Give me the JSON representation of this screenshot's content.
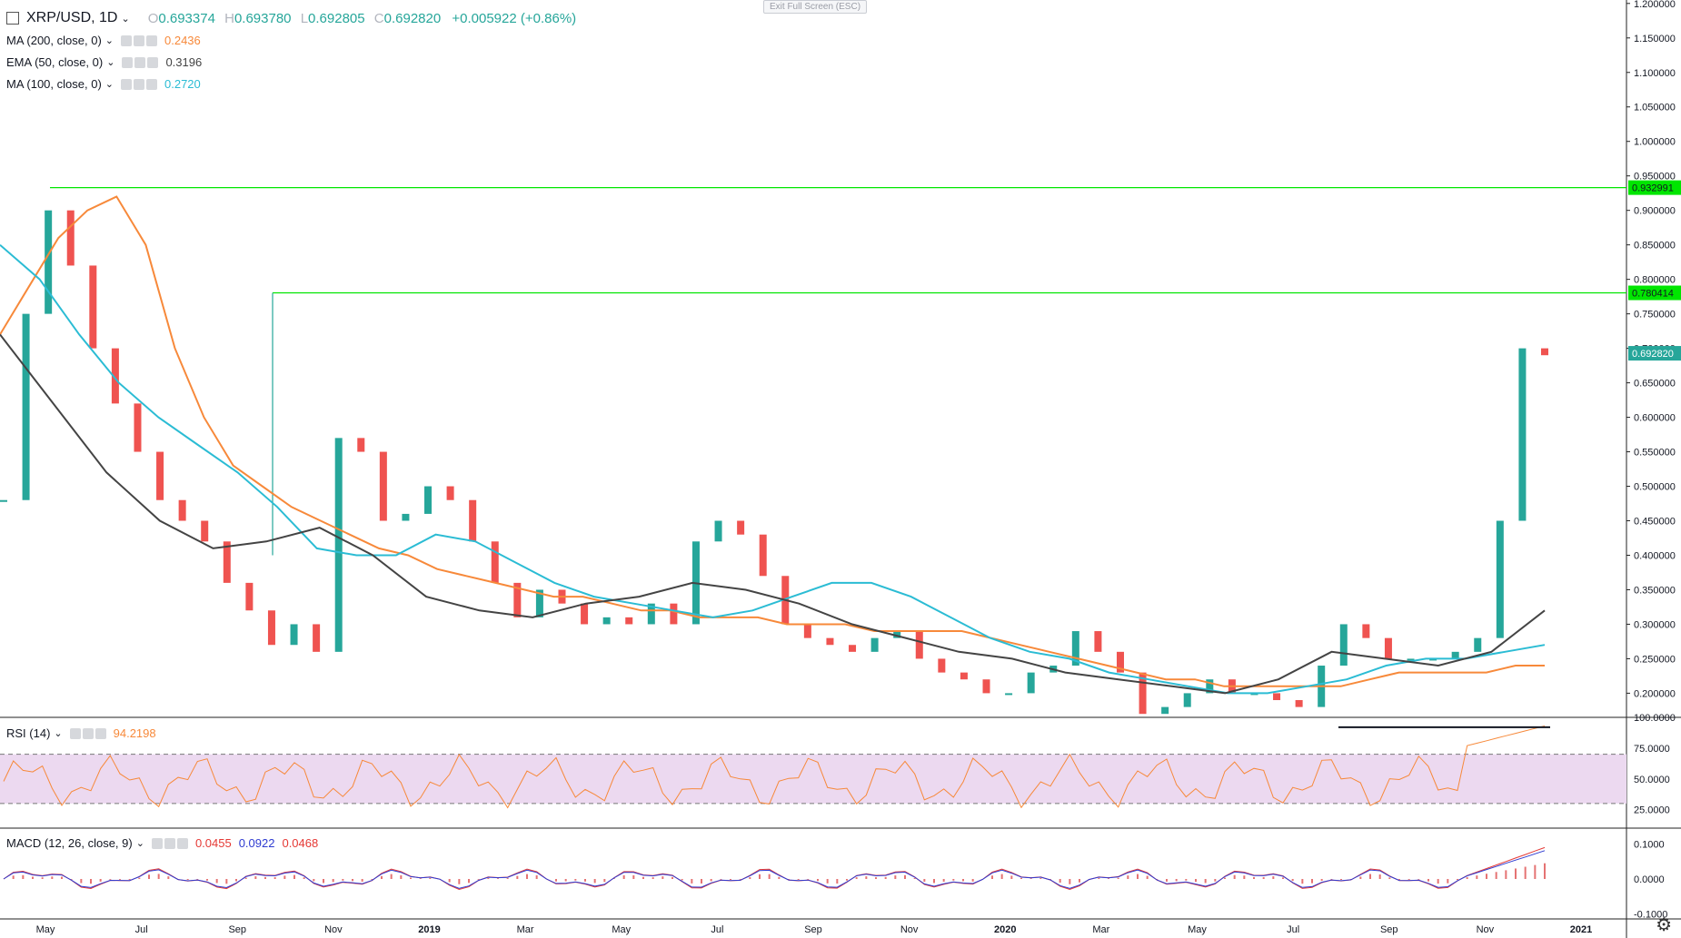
{
  "header": {
    "symbol": "XRP/USD",
    "interval": "1D",
    "open_label": "O",
    "open": "0.693374",
    "high_label": "H",
    "high": "0.693780",
    "low_label": "L",
    "low": "0.692805",
    "close_label": "C",
    "close": "0.692820",
    "change": "+0.005922 (+0.86%)",
    "exit_fullscreen": "Exit Full Screen (ESC)"
  },
  "indicators": {
    "ma200": {
      "label": "MA (200, close, 0)",
      "value": "0.2436",
      "color": "#f7893a"
    },
    "ema50": {
      "label": "EMA (50, close, 0)",
      "value": "0.3196",
      "color": "#444444"
    },
    "ma100": {
      "label": "MA (100, close, 0)",
      "value": "0.2720",
      "color": "#2bbcd4"
    },
    "rsi": {
      "label": "RSI (14)",
      "value": "94.2198",
      "color": "#f7893a"
    },
    "macd": {
      "label": "MACD (12, 26, close, 9)",
      "v1": "0.0455",
      "v2": "0.0922",
      "v3": "0.0468",
      "c1": "#e53935",
      "c2": "#2e3bd1"
    }
  },
  "chart_data": {
    "type": "line",
    "colors": {
      "up": "#26a69a",
      "down": "#ef5350",
      "hline": "#00e600",
      "rsi_band": "#ecd9f0"
    },
    "price_axis": [
      "1.200000",
      "1.150000",
      "1.100000",
      "1.050000",
      "1.000000",
      "0.950000",
      "0.900000",
      "0.850000",
      "0.800000",
      "0.750000",
      "0.700000",
      "0.650000",
      "0.600000",
      "0.550000",
      "0.500000",
      "0.450000",
      "0.400000",
      "0.350000",
      "0.300000",
      "0.250000",
      "0.200000"
    ],
    "price_range": [
      0.165,
      1.205
    ],
    "rsi_axis": [
      "100.0000",
      "75.0000",
      "50.0000",
      "25.0000"
    ],
    "rsi_range": [
      10,
      100
    ],
    "macd_axis": [
      "0.1000",
      "0.0000",
      "-0.1000"
    ],
    "time_labels": [
      "May",
      "Jul",
      "Sep",
      "Nov",
      "2019",
      "Mar",
      "May",
      "Jul",
      "Sep",
      "Nov",
      "2020",
      "Mar",
      "May",
      "Jul",
      "Sep",
      "Nov",
      "2021"
    ],
    "markers": [
      {
        "label": "0.932991",
        "value": 0.932991
      },
      {
        "label": "0.780414",
        "value": 0.780414
      },
      {
        "label": "0.692820",
        "value": 0.69282
      }
    ],
    "price": [
      0.48,
      0.75,
      0.9,
      0.82,
      0.7,
      0.62,
      0.55,
      0.48,
      0.45,
      0.42,
      0.36,
      0.32,
      0.27,
      0.3,
      0.26,
      0.57,
      0.55,
      0.45,
      0.46,
      0.5,
      0.48,
      0.42,
      0.36,
      0.31,
      0.35,
      0.33,
      0.3,
      0.31,
      0.3,
      0.33,
      0.3,
      0.42,
      0.45,
      0.43,
      0.37,
      0.3,
      0.28,
      0.27,
      0.26,
      0.28,
      0.29,
      0.25,
      0.23,
      0.22,
      0.2,
      0.2,
      0.23,
      0.24,
      0.29,
      0.26,
      0.23,
      0.17,
      0.18,
      0.2,
      0.22,
      0.2,
      0.2,
      0.19,
      0.18,
      0.24,
      0.3,
      0.28,
      0.25,
      0.25,
      0.25,
      0.26,
      0.28,
      0.45,
      0.7,
      0.69
    ],
    "ma200": [
      0.72,
      0.79,
      0.86,
      0.9,
      0.92,
      0.85,
      0.7,
      0.6,
      0.53,
      0.5,
      0.47,
      0.45,
      0.43,
      0.41,
      0.4,
      0.38,
      0.37,
      0.36,
      0.35,
      0.34,
      0.34,
      0.33,
      0.32,
      0.32,
      0.31,
      0.31,
      0.31,
      0.3,
      0.3,
      0.3,
      0.29,
      0.29,
      0.29,
      0.29,
      0.28,
      0.27,
      0.26,
      0.25,
      0.24,
      0.23,
      0.22,
      0.22,
      0.21,
      0.21,
      0.21,
      0.21,
      0.21,
      0.22,
      0.23,
      0.23,
      0.23,
      0.23,
      0.24,
      0.24
    ],
    "ma100": [
      0.85,
      0.8,
      0.72,
      0.65,
      0.6,
      0.56,
      0.52,
      0.47,
      0.41,
      0.4,
      0.4,
      0.43,
      0.42,
      0.39,
      0.36,
      0.34,
      0.33,
      0.32,
      0.31,
      0.32,
      0.34,
      0.36,
      0.36,
      0.34,
      0.31,
      0.28,
      0.26,
      0.25,
      0.23,
      0.22,
      0.21,
      0.2,
      0.2,
      0.21,
      0.22,
      0.24,
      0.25,
      0.25,
      0.26,
      0.27
    ],
    "ema50": [
      0.72,
      0.62,
      0.52,
      0.45,
      0.41,
      0.42,
      0.44,
      0.4,
      0.34,
      0.32,
      0.31,
      0.33,
      0.34,
      0.36,
      0.35,
      0.33,
      0.3,
      0.28,
      0.26,
      0.25,
      0.23,
      0.22,
      0.21,
      0.2,
      0.22,
      0.26,
      0.25,
      0.24,
      0.26,
      0.32
    ]
  }
}
